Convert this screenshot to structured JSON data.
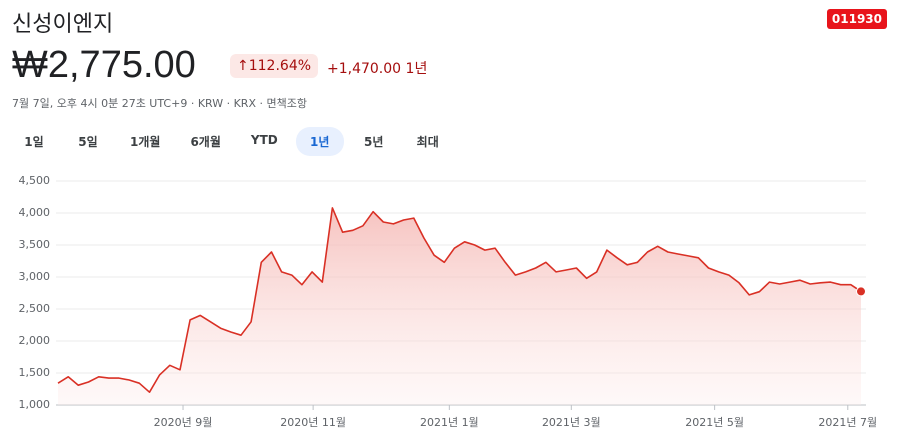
{
  "header": {
    "title": "신성이엔지",
    "ticker": "011930",
    "price": "₩2,775.00",
    "change_percent": "112.64%",
    "change_value": "+1,470.00",
    "change_period": "1년",
    "subtitle": "7월 7일, 오후 4시 0분 27초 UTC+9 · KRW · KRX · 면책조항"
  },
  "range_buttons": {
    "items": [
      "1일",
      "5일",
      "1개월",
      "6개월",
      "YTD",
      "1년",
      "5년",
      "최대"
    ],
    "selected": 5
  },
  "chart_data": {
    "type": "area",
    "color": "#d93025",
    "values": [
      1340,
      1440,
      1310,
      1360,
      1440,
      1420,
      1420,
      1390,
      1340,
      1200,
      1470,
      1620,
      1550,
      2330,
      2400,
      2300,
      2200,
      2140,
      2090,
      2300,
      3230,
      3390,
      3080,
      3030,
      2880,
      3080,
      2920,
      4080,
      3700,
      3730,
      3800,
      4020,
      3860,
      3830,
      3890,
      3920,
      3610,
      3340,
      3230,
      3450,
      3550,
      3500,
      3420,
      3450,
      3230,
      3030,
      3080,
      3140,
      3230,
      3080,
      3110,
      3140,
      2980,
      3080,
      3420,
      3300,
      3190,
      3230,
      3390,
      3480,
      3390,
      3360,
      3330,
      3300,
      3140,
      3080,
      3030,
      2910,
      2720,
      2770,
      2920,
      2890,
      2920,
      2950,
      2890,
      2910,
      2920,
      2880,
      2880,
      2775
    ],
    "ylim": [
      1000,
      4500
    ],
    "yticks": [
      {
        "value": 1000,
        "label": "1,000"
      },
      {
        "value": 1500,
        "label": "1,500"
      },
      {
        "value": 2000,
        "label": "2,000"
      },
      {
        "value": 2500,
        "label": "2,500"
      },
      {
        "value": 3000,
        "label": "3,000"
      },
      {
        "value": 3500,
        "label": "3,500"
      },
      {
        "value": 4000,
        "label": "4,000"
      },
      {
        "value": 4500,
        "label": "4,500"
      }
    ],
    "xticks": [
      {
        "value": 12.3,
        "label": "2020년 9월"
      },
      {
        "value": 25.1,
        "label": "2020년 11월"
      },
      {
        "value": 38.5,
        "label": "2021년 1월"
      },
      {
        "value": 50.5,
        "label": "2021년 3월"
      },
      {
        "value": 64.6,
        "label": "2021년 5월"
      },
      {
        "value": 77.7,
        "label": "2021년 7월"
      }
    ],
    "grid": true
  }
}
